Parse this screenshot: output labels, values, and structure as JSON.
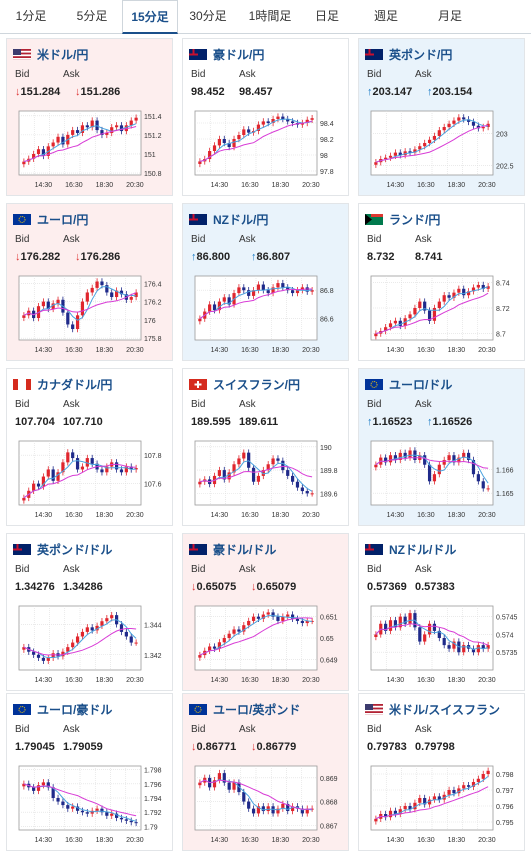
{
  "tabs": [
    {
      "label": "1分足",
      "active": false
    },
    {
      "label": "5分足",
      "active": false
    },
    {
      "label": "15分足",
      "active": true
    },
    {
      "label": "30分足",
      "active": false
    },
    {
      "label": "1時間足",
      "active": false
    },
    {
      "label": "日足",
      "active": false
    },
    {
      "label": "週足",
      "active": false
    },
    {
      "label": "月足",
      "active": false
    }
  ],
  "bid_label": "Bid",
  "ask_label": "Ask",
  "x_ticks": [
    "14:30",
    "16:30",
    "18:30",
    "20:30"
  ],
  "colors": {
    "up": "#e0262e",
    "down": "#1f2a8a",
    "ma_fast": "#4aa3df",
    "ma_slow": "#d83cd6",
    "down_bg": "#fdeeee",
    "up_bg": "#e9f3fb"
  },
  "cards": [
    {
      "pair": "米ドル/円",
      "flag": "us-jp",
      "bid": "151.284",
      "ask": "151.286",
      "dir": "down",
      "y_ticks": [
        "151.4",
        "151.2",
        "151",
        "150.8"
      ],
      "close": [
        150.92,
        150.95,
        151.0,
        151.05,
        150.98,
        151.08,
        151.12,
        151.18,
        151.1,
        151.2,
        151.25,
        151.22,
        151.3,
        151.28,
        151.35,
        151.25,
        151.2,
        151.22,
        151.28,
        151.3,
        151.24,
        151.3,
        151.35,
        151.38
      ],
      "ymin": 150.78,
      "ymax": 151.45
    },
    {
      "pair": "豪ドル/円",
      "flag": "au-jp",
      "bid": "98.452",
      "ask": "98.457",
      "dir": "none",
      "y_ticks": [
        "98.4",
        "98.2",
        "98",
        "97.8"
      ],
      "close": [
        97.92,
        97.95,
        98.05,
        98.12,
        98.2,
        98.15,
        98.1,
        98.2,
        98.25,
        98.32,
        98.28,
        98.3,
        98.38,
        98.42,
        98.4,
        98.45,
        98.48,
        98.45,
        98.42,
        98.4,
        98.38,
        98.4,
        98.44,
        98.46
      ],
      "ymin": 97.75,
      "ymax": 98.55
    },
    {
      "pair": "英ポンド/円",
      "flag": "gb-jp",
      "bid": "203.147",
      "ask": "203.154",
      "dir": "up",
      "y_ticks": [
        "203",
        "202.5"
      ],
      "close": [
        202.55,
        202.6,
        202.62,
        202.65,
        202.7,
        202.66,
        202.72,
        202.7,
        202.75,
        202.8,
        202.85,
        202.9,
        202.96,
        203.05,
        203.1,
        203.15,
        203.2,
        203.25,
        203.22,
        203.18,
        203.12,
        203.08,
        203.1,
        203.15
      ],
      "ymin": 202.35,
      "ymax": 203.35
    },
    {
      "pair": "ユーロ/円",
      "flag": "eu-jp",
      "bid": "176.282",
      "ask": "176.286",
      "dir": "down",
      "y_ticks": [
        "176.4",
        "176.2",
        "176",
        "175.8"
      ],
      "close": [
        176.05,
        176.1,
        176.02,
        176.15,
        176.2,
        176.12,
        176.18,
        176.22,
        176.08,
        175.95,
        175.9,
        176.05,
        176.2,
        176.3,
        176.35,
        176.42,
        176.38,
        176.3,
        176.25,
        176.32,
        176.28,
        176.22,
        176.25,
        176.3
      ],
      "ymin": 175.78,
      "ymax": 176.48
    },
    {
      "pair": "NZドル/円",
      "flag": "nz-jp",
      "bid": "86.800",
      "ask": "86.807",
      "dir": "up",
      "y_ticks": [
        "86.8",
        "86.6"
      ],
      "close": [
        86.6,
        86.65,
        86.7,
        86.66,
        86.72,
        86.75,
        86.7,
        86.78,
        86.82,
        86.8,
        86.76,
        86.8,
        86.84,
        86.8,
        86.78,
        86.82,
        86.85,
        86.82,
        86.8,
        86.78,
        86.8,
        86.82,
        86.79,
        86.8
      ],
      "ymin": 86.45,
      "ymax": 86.9
    },
    {
      "pair": "ランド/円",
      "flag": "za-jp",
      "bid": "8.732",
      "ask": "8.741",
      "dir": "none",
      "y_ticks": [
        "8.74",
        "8.72",
        "8.7"
      ],
      "close": [
        8.7,
        8.702,
        8.705,
        8.708,
        8.71,
        8.706,
        8.712,
        8.715,
        8.72,
        8.725,
        8.718,
        8.71,
        8.72,
        8.725,
        8.73,
        8.728,
        8.732,
        8.735,
        8.73,
        8.733,
        8.736,
        8.738,
        8.735,
        8.737
      ],
      "ymin": 8.695,
      "ymax": 8.745
    },
    {
      "pair": "カナダドル/円",
      "flag": "ca-jp",
      "bid": "107.704",
      "ask": "107.710",
      "dir": "none",
      "y_ticks": [
        "107.8",
        "107.6"
      ],
      "close": [
        107.5,
        107.55,
        107.6,
        107.58,
        107.65,
        107.7,
        107.62,
        107.68,
        107.75,
        107.82,
        107.78,
        107.7,
        107.72,
        107.78,
        107.74,
        107.7,
        107.68,
        107.72,
        107.75,
        107.7,
        107.68,
        107.72,
        107.7,
        107.71
      ],
      "ymin": 107.45,
      "ymax": 107.9
    },
    {
      "pair": "スイスフラン/円",
      "flag": "ch-jp",
      "bid": "189.595",
      "ask": "189.611",
      "dir": "none",
      "y_ticks": [
        "190",
        "189.8",
        "189.6"
      ],
      "close": [
        189.7,
        189.72,
        189.68,
        189.75,
        189.8,
        189.72,
        189.78,
        189.85,
        189.9,
        189.95,
        189.82,
        189.7,
        189.75,
        189.8,
        189.85,
        189.9,
        189.88,
        189.8,
        189.75,
        189.7,
        189.65,
        189.62,
        189.6,
        189.6
      ],
      "ymin": 189.5,
      "ymax": 190.05
    },
    {
      "pair": "ユーロ/ドル",
      "flag": "eu-us",
      "bid": "1.16523",
      "ask": "1.16526",
      "dir": "up",
      "y_ticks": [
        "1.166",
        "1.165"
      ],
      "close": [
        1.1662,
        1.1665,
        1.1663,
        1.1666,
        1.1664,
        1.1667,
        1.1665,
        1.1668,
        1.1664,
        1.1666,
        1.1662,
        1.1655,
        1.1658,
        1.1662,
        1.1664,
        1.1666,
        1.1663,
        1.1665,
        1.1667,
        1.1664,
        1.1658,
        1.1655,
        1.1652,
        1.1652
      ],
      "ymin": 1.1645,
      "ymax": 1.1672
    },
    {
      "pair": "英ポンド/ドル",
      "flag": "gb-us",
      "bid": "1.34276",
      "ask": "1.34286",
      "dir": "none",
      "y_ticks": [
        "1.344",
        "1.342"
      ],
      "close": [
        1.3425,
        1.3422,
        1.342,
        1.3418,
        1.3416,
        1.3418,
        1.3421,
        1.3419,
        1.3422,
        1.3425,
        1.3428,
        1.3432,
        1.3435,
        1.3438,
        1.3436,
        1.3439,
        1.3442,
        1.3444,
        1.3446,
        1.344,
        1.3435,
        1.3432,
        1.3428,
        1.3428
      ],
      "ymin": 1.341,
      "ymax": 1.3452
    },
    {
      "pair": "豪ドル/ドル",
      "flag": "au-us",
      "bid": "0.65075",
      "ask": "0.65079",
      "dir": "down",
      "y_ticks": [
        "0.651",
        "0.65",
        "0.649"
      ],
      "close": [
        0.6492,
        0.6494,
        0.6496,
        0.6495,
        0.6498,
        0.65,
        0.6502,
        0.6504,
        0.6503,
        0.6506,
        0.6508,
        0.651,
        0.6509,
        0.6511,
        0.6512,
        0.651,
        0.6508,
        0.651,
        0.6511,
        0.6509,
        0.6508,
        0.6507,
        0.6508,
        0.6508
      ],
      "ymin": 0.6485,
      "ymax": 0.6515
    },
    {
      "pair": "NZドル/ドル",
      "flag": "nz-us",
      "bid": "0.57369",
      "ask": "0.57383",
      "dir": "none",
      "y_ticks": [
        "0.5745",
        "0.574",
        "0.5735"
      ],
      "close": [
        0.574,
        0.5743,
        0.5741,
        0.5744,
        0.5742,
        0.5745,
        0.5743,
        0.5746,
        0.5742,
        0.5738,
        0.574,
        0.5743,
        0.5741,
        0.5739,
        0.5737,
        0.5736,
        0.5738,
        0.5735,
        0.5737,
        0.5736,
        0.5735,
        0.5737,
        0.5736,
        0.5737
      ],
      "ymin": 0.573,
      "ymax": 0.5748
    },
    {
      "pair": "ユーロ/豪ドル",
      "flag": "eu-au",
      "bid": "1.79045",
      "ask": "1.79059",
      "dir": "none",
      "y_ticks": [
        "1.798",
        "1.796",
        "1.794",
        "1.792",
        "1.79"
      ],
      "close": [
        1.796,
        1.7955,
        1.795,
        1.7958,
        1.7962,
        1.7955,
        1.794,
        1.7935,
        1.793,
        1.7925,
        1.7928,
        1.7922,
        1.792,
        1.7918,
        1.7922,
        1.7925,
        1.792,
        1.7915,
        1.7918,
        1.7912,
        1.791,
        1.7908,
        1.7906,
        1.7905
      ],
      "ymin": 1.7895,
      "ymax": 1.7985
    },
    {
      "pair": "ユーロ/英ポンド",
      "flag": "eu-gb",
      "bid": "0.86771",
      "ask": "0.86779",
      "dir": "down",
      "y_ticks": [
        "0.869",
        "0.868",
        "0.867"
      ],
      "close": [
        0.8688,
        0.869,
        0.8686,
        0.8689,
        0.8692,
        0.8688,
        0.8685,
        0.8688,
        0.8684,
        0.868,
        0.8677,
        0.8675,
        0.8678,
        0.8676,
        0.8678,
        0.8675,
        0.8677,
        0.8679,
        0.8676,
        0.8678,
        0.8677,
        0.8675,
        0.8677,
        0.8677
      ],
      "ymin": 0.8668,
      "ymax": 0.8695
    },
    {
      "pair": "米ドル/スイスフラン",
      "flag": "us-ch",
      "bid": "0.79783",
      "ask": "0.79798",
      "dir": "none",
      "y_ticks": [
        "0.798",
        "0.797",
        "0.796",
        "0.795"
      ],
      "close": [
        0.7952,
        0.7955,
        0.7953,
        0.7957,
        0.7955,
        0.7958,
        0.796,
        0.7958,
        0.7962,
        0.7965,
        0.7961,
        0.7964,
        0.7966,
        0.7964,
        0.7967,
        0.797,
        0.7968,
        0.7971,
        0.7973,
        0.7972,
        0.7975,
        0.7977,
        0.798,
        0.7982
      ],
      "ymin": 0.7945,
      "ymax": 0.7985
    }
  ]
}
